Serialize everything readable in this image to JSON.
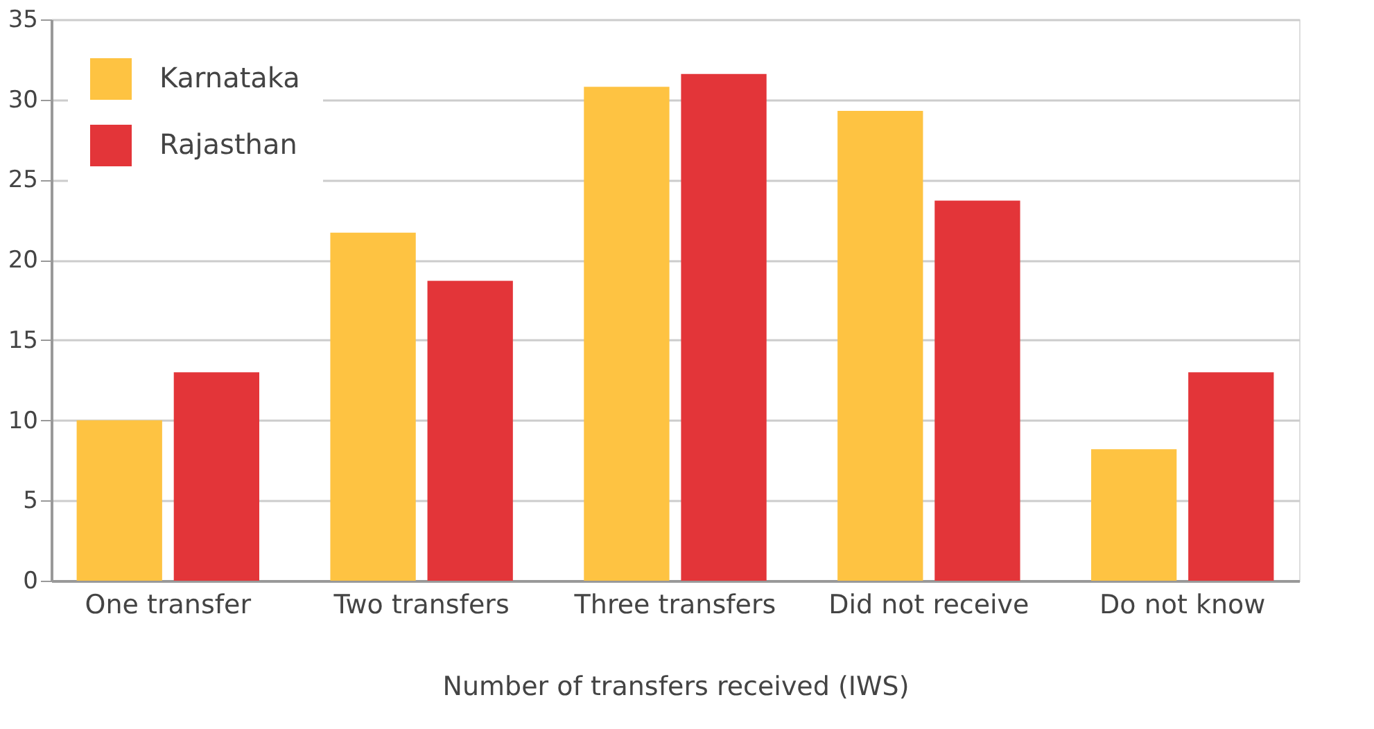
{
  "chart_data": {
    "type": "bar",
    "xlabel": "Number of transfers received (IWS)",
    "categories": [
      "One transfer",
      "Two transfers",
      "Three transfers",
      "Did not receive",
      "Do not know"
    ],
    "series": [
      {
        "name": "Karnataka",
        "color": "#fec342",
        "values": [
          10.0,
          21.7,
          30.8,
          29.3,
          8.2
        ]
      },
      {
        "name": "Rajasthan",
        "color": "#e33539",
        "values": [
          13.0,
          18.7,
          31.6,
          23.7,
          13.0
        ]
      }
    ],
    "ylim": [
      0,
      35
    ],
    "yticks": [
      0,
      5,
      10,
      15,
      20,
      25,
      30,
      35
    ],
    "grid": "y",
    "legend": "top left"
  }
}
